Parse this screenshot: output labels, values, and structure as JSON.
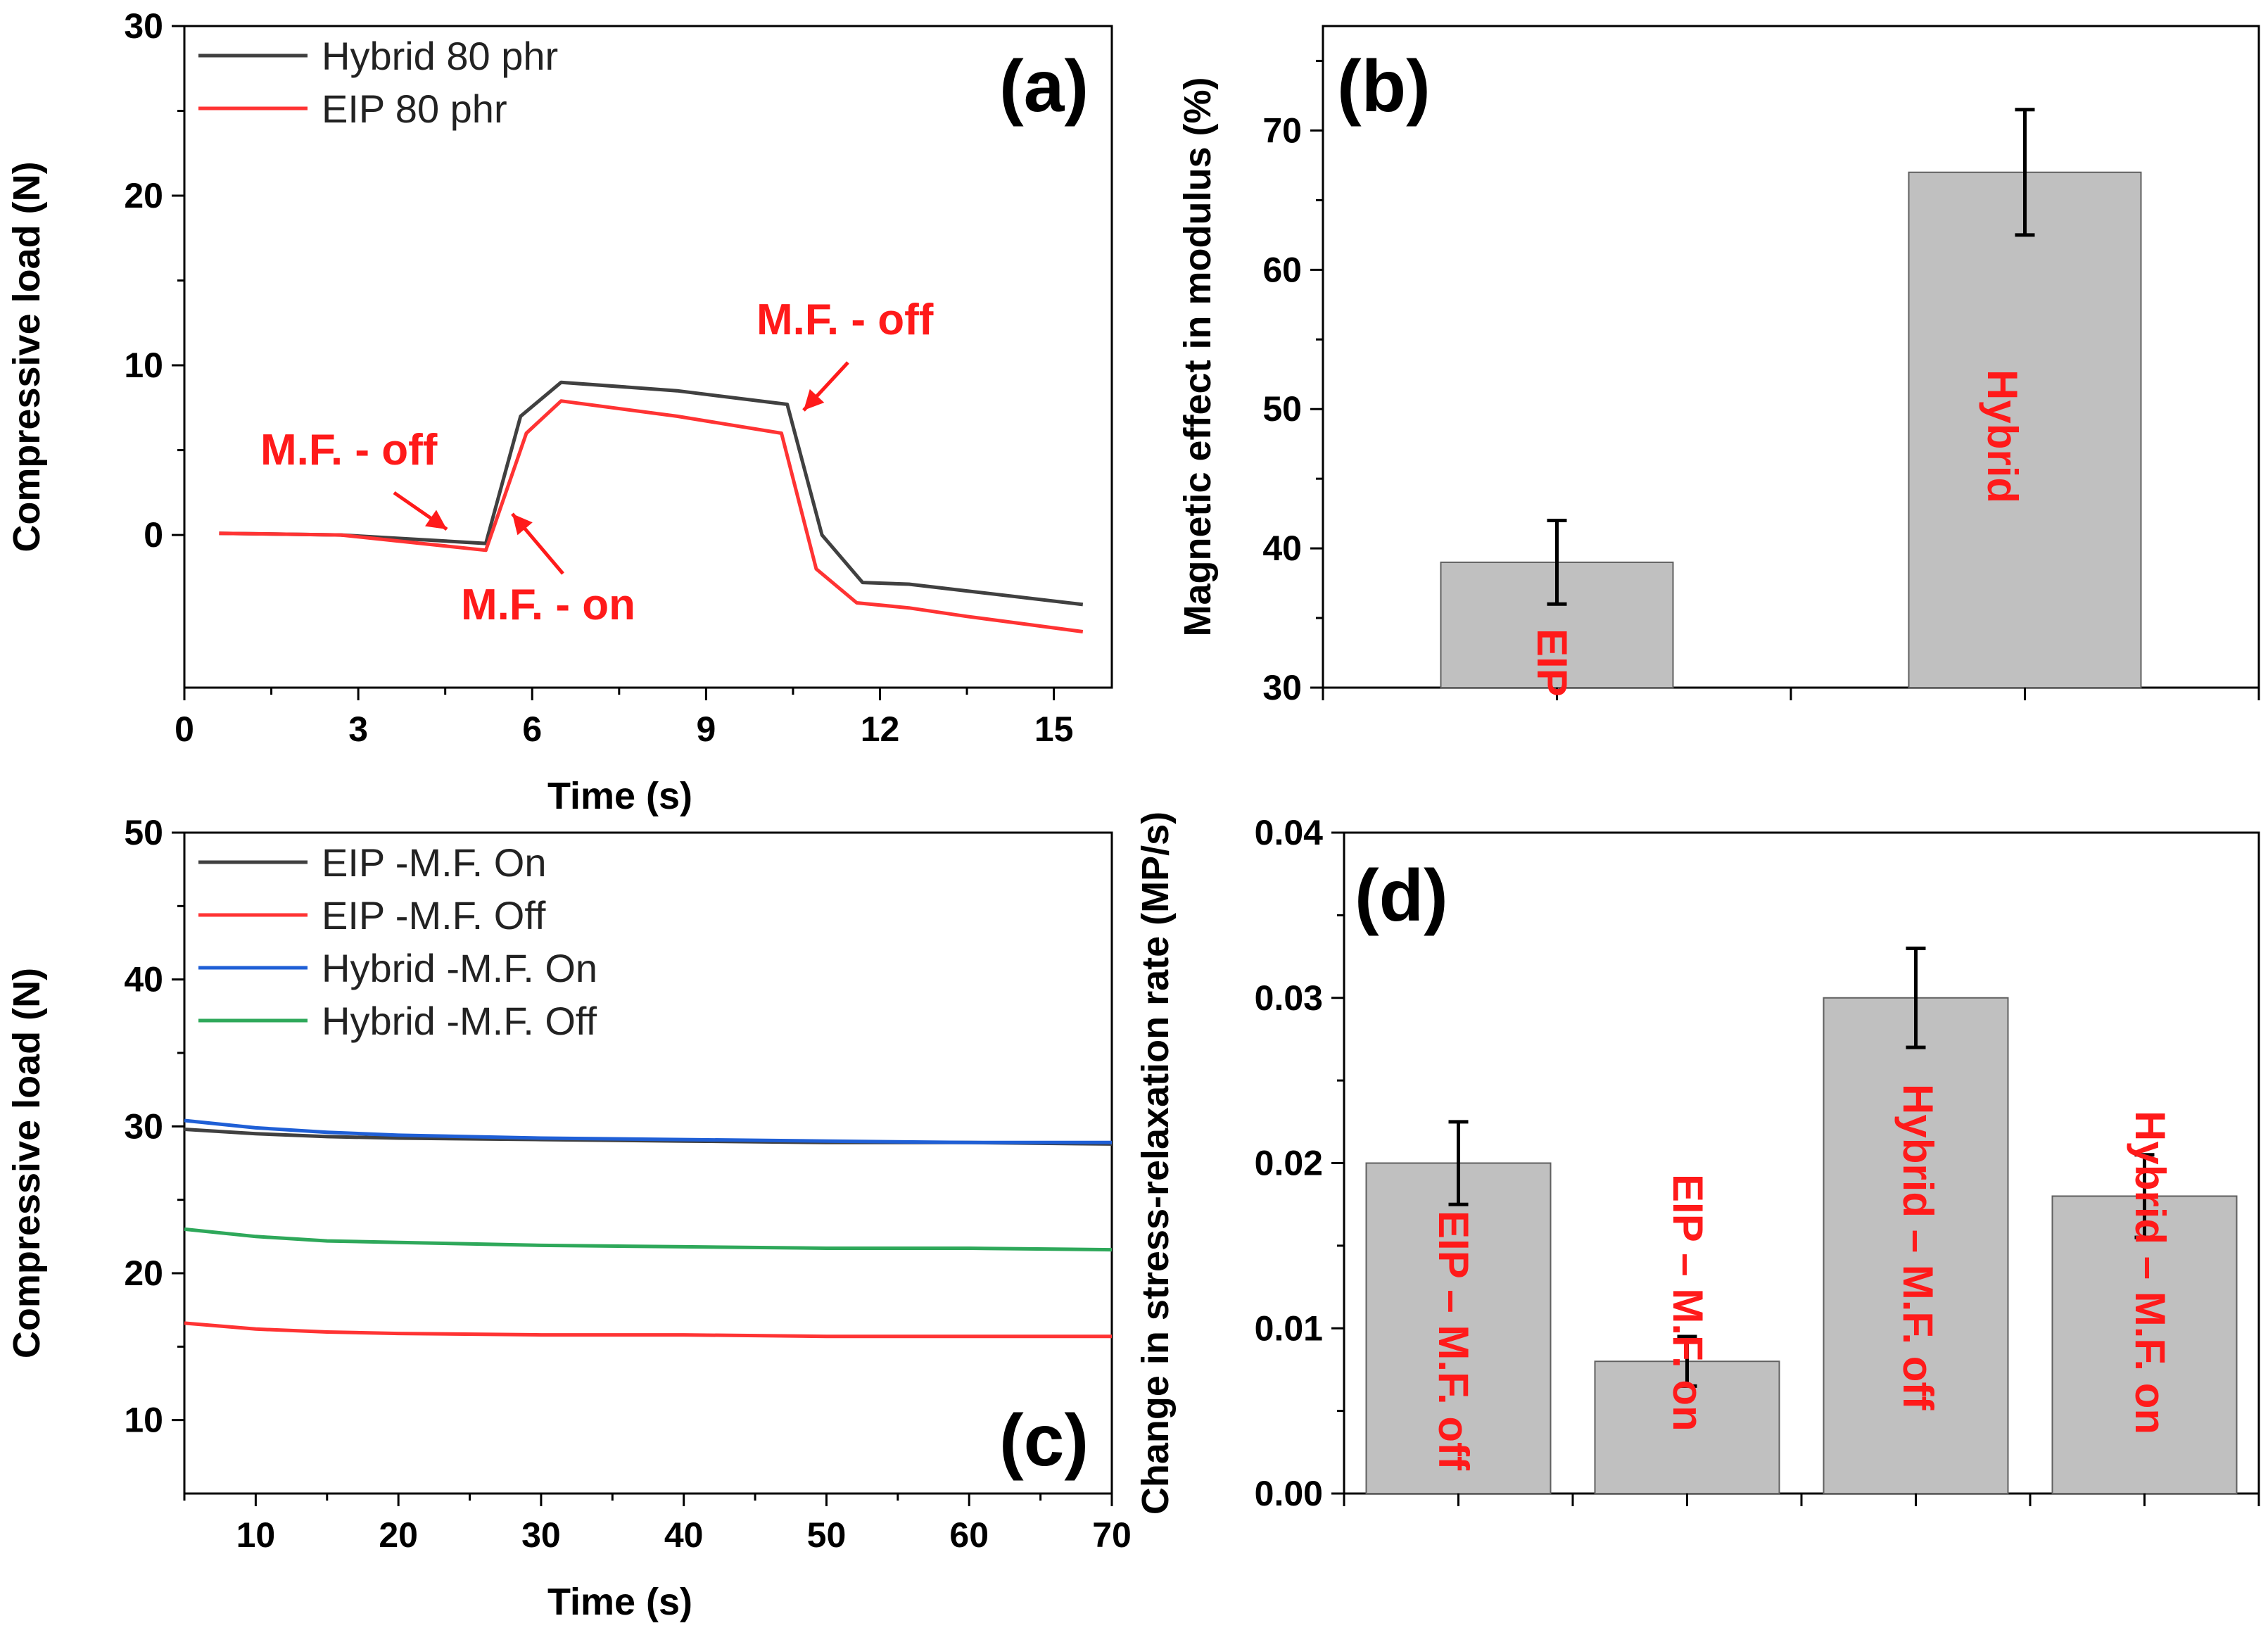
{
  "chart_data": [
    {
      "panel": "(a)",
      "type": "line",
      "xlabel": "Time (s)",
      "ylabel": "Compressive load (N)",
      "xlim": [
        0,
        16
      ],
      "ylim": [
        -9,
        30
      ],
      "xticks": [
        0,
        3,
        6,
        9,
        12,
        15
      ],
      "yticks": [
        0,
        10,
        20,
        30
      ],
      "legend_position": "top-left",
      "series": [
        {
          "name": "Hybrid 80 phr",
          "color": "#404040",
          "x": [
            0.6,
            2.7,
            5.2,
            5.8,
            6.5,
            8.5,
            10.4,
            11.0,
            11.7,
            12.5,
            13.5,
            15.5
          ],
          "y": [
            0.1,
            0.0,
            -0.5,
            7.0,
            9.0,
            8.5,
            7.7,
            0.0,
            -2.8,
            -2.9,
            -3.3,
            -4.1
          ]
        },
        {
          "name": "EIP 80 phr",
          "color": "#ff3333",
          "x": [
            0.6,
            2.7,
            5.2,
            5.9,
            6.5,
            8.5,
            10.3,
            10.9,
            11.6,
            12.5,
            13.5,
            15.5
          ],
          "y": [
            0.1,
            0.0,
            -0.9,
            6.0,
            7.9,
            7.0,
            6.0,
            -2.0,
            -4.0,
            -4.3,
            -4.8,
            -5.7
          ]
        }
      ],
      "annotations": [
        {
          "text": "M.F. - off",
          "at": [
            4.7,
            -0.3
          ]
        },
        {
          "text": "M.F. - on",
          "at": [
            5.6,
            1.0
          ]
        },
        {
          "text": "M.F. - off",
          "at": [
            10.6,
            7.0
          ]
        }
      ]
    },
    {
      "panel": "(b)",
      "type": "bar",
      "ylabel": "Magnetic effect in modulus (%)",
      "ylim": [
        30,
        77.5
      ],
      "yticks": [
        30,
        40,
        50,
        60,
        70
      ],
      "categories": [
        "EIP",
        "Hybrid"
      ],
      "values": [
        39,
        67
      ],
      "errors": [
        3,
        4.5
      ]
    },
    {
      "panel": "(c)",
      "type": "line",
      "xlabel": "Time (s)",
      "ylabel": "Compressive load (N)",
      "xlim": [
        5,
        70
      ],
      "ylim": [
        5,
        50
      ],
      "xticks": [
        10,
        20,
        30,
        40,
        50,
        60,
        70
      ],
      "yticks": [
        10,
        20,
        30,
        40,
        50
      ],
      "legend_position": "top-left",
      "series": [
        {
          "name": "EIP -M.F. On",
          "color": "#404040",
          "x": [
            5,
            10,
            15,
            20,
            30,
            40,
            50,
            60,
            70
          ],
          "y": [
            29.8,
            29.5,
            29.3,
            29.2,
            29.1,
            29.0,
            28.9,
            28.9,
            28.8
          ]
        },
        {
          "name": "EIP -M.F. Off",
          "color": "#ff3333",
          "x": [
            5,
            10,
            15,
            20,
            30,
            40,
            50,
            60,
            70
          ],
          "y": [
            16.6,
            16.2,
            16.0,
            15.9,
            15.8,
            15.8,
            15.7,
            15.7,
            15.7
          ]
        },
        {
          "name": "Hybrid -M.F. On",
          "color": "#1f5fd6",
          "x": [
            5,
            10,
            15,
            20,
            30,
            40,
            50,
            60,
            70
          ],
          "y": [
            30.4,
            29.9,
            29.6,
            29.4,
            29.2,
            29.1,
            29.0,
            28.9,
            28.9
          ]
        },
        {
          "name": "Hybrid -M.F. Off",
          "color": "#2ea85a",
          "x": [
            5,
            10,
            15,
            20,
            30,
            40,
            50,
            60,
            70
          ],
          "y": [
            23.0,
            22.5,
            22.2,
            22.1,
            21.9,
            21.8,
            21.7,
            21.7,
            21.6
          ]
        }
      ]
    },
    {
      "panel": "(d)",
      "type": "bar",
      "ylabel": "Change in stress-relaxation rate (MP/s)",
      "ylim": [
        0,
        0.04
      ],
      "yticks": [
        "0.00",
        "0.01",
        "0.02",
        "0.03",
        "0.04"
      ],
      "categories": [
        "EIP – M.F. off",
        "EIP – M.F. on",
        "Hybrid – M.F. off",
        "Hybrid – M.F. on"
      ],
      "values": [
        0.02,
        0.008,
        0.03,
        0.018
      ],
      "errors": [
        0.0025,
        0.0015,
        0.003,
        0.0025
      ]
    }
  ]
}
